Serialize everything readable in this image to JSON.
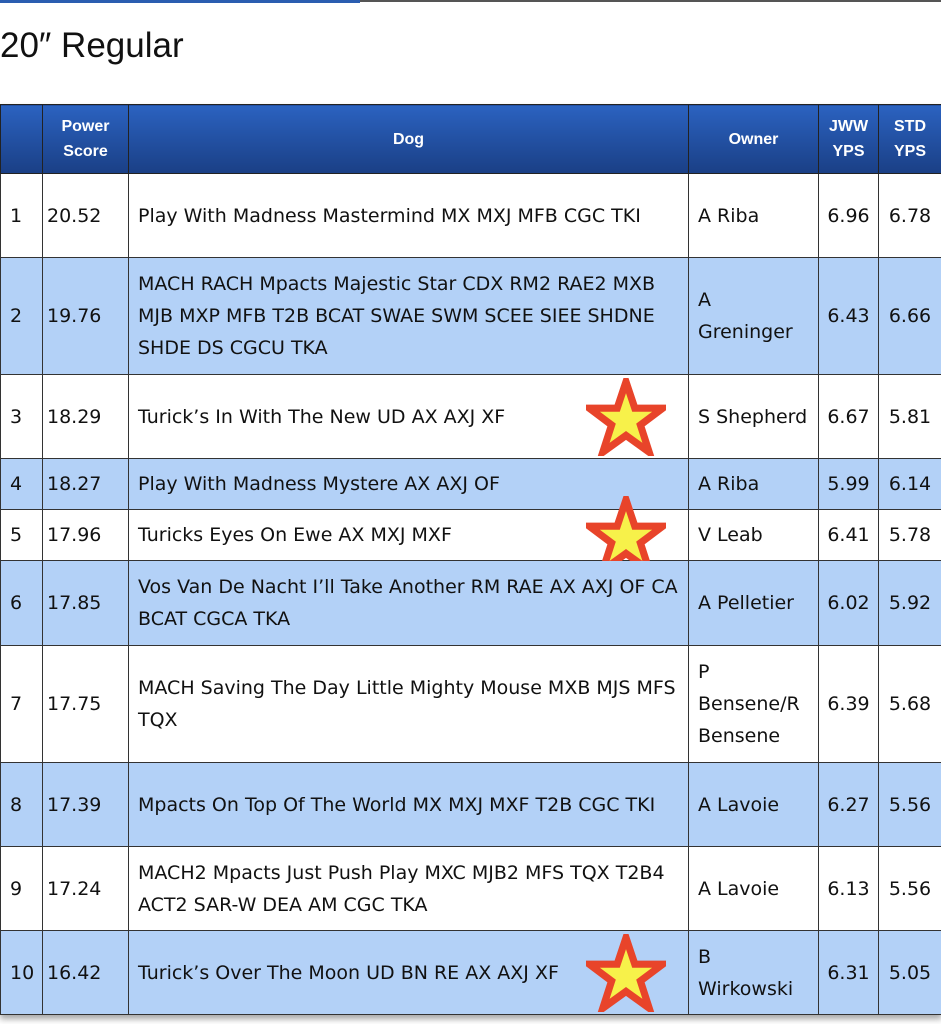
{
  "title": "20″ Regular",
  "columns": [
    "",
    "Power Score",
    "Dog",
    "Owner",
    "JWW YPS",
    "STD YPS"
  ],
  "colors": {
    "header": "#2357b0",
    "alt_row": "#b3d1f7",
    "star_fill": "#f7f14a",
    "star_stroke": "#e8442a"
  },
  "rows": [
    {
      "rank": "1",
      "score": "20.52",
      "dog": "Play With Madness Mastermind MX MXJ MFB CGC TKI",
      "owner": "A Riba",
      "jww": "6.96",
      "std": "6.78",
      "star": false
    },
    {
      "rank": "2",
      "score": "19.76",
      "dog": "MACH RACH Mpacts Majestic Star CDX RM2 RAE2 MXB MJB MXP MFB T2B BCAT SWAE SWM SCEE SIEE SHDNE SHDE DS CGCU TKA",
      "owner": "A Greninger",
      "jww": "6.43",
      "std": "6.66",
      "star": false
    },
    {
      "rank": "3",
      "score": "18.29",
      "dog": "Turick’s In With The New UD AX AXJ XF",
      "owner": "S Shepherd",
      "jww": "6.67",
      "std": "5.81",
      "star": true
    },
    {
      "rank": "4",
      "score": "18.27",
      "dog": "Play With Madness Mystere AX AXJ OF",
      "owner": "A Riba",
      "jww": "5.99",
      "std": "6.14",
      "star": false
    },
    {
      "rank": "5",
      "score": "17.96",
      "dog": "Turicks Eyes On Ewe AX MXJ MXF",
      "owner": "V Leab",
      "jww": "6.41",
      "std": "5.78",
      "star": true
    },
    {
      "rank": "6",
      "score": "17.85",
      "dog": "Vos Van De Nacht I’ll Take Another RM RAE AX AXJ OF CA BCAT CGCA TKA",
      "owner": "A Pelletier",
      "jww": "6.02",
      "std": "5.92",
      "star": false
    },
    {
      "rank": "7",
      "score": "17.75",
      "dog": "MACH Saving The Day Little Mighty Mouse MXB MJS MFS TQX",
      "owner": "P Bensene/R Bensene",
      "jww": "6.39",
      "std": "5.68",
      "star": false
    },
    {
      "rank": "8",
      "score": "17.39",
      "dog": "Mpacts On Top Of The World MX MXJ MXF T2B CGC TKI",
      "owner": "A Lavoie",
      "jww": "6.27",
      "std": "5.56",
      "star": false
    },
    {
      "rank": "9",
      "score": "17.24",
      "dog": "MACH2 Mpacts Just Push Play MXC MJB2 MFS TQX T2B4 ACT2 SAR-W DEA AM CGC TKA",
      "owner": "A Lavoie",
      "jww": "6.13",
      "std": "5.56",
      "star": false
    },
    {
      "rank": "10",
      "score": "16.42",
      "dog": "Turick’s Over The Moon UD BN RE AX AXJ XF",
      "owner": "B Wirkowski",
      "jww": "6.31",
      "std": "5.05",
      "star": true
    }
  ]
}
